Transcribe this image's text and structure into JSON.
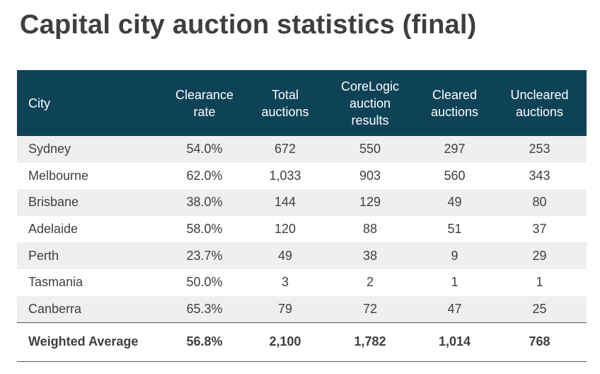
{
  "title": "Capital city auction statistics (final)",
  "table": {
    "headers": [
      "City",
      "Clearance rate",
      "Total auctions",
      "CoreLogic auction results",
      "Cleared auctions",
      "Uncleared auctions"
    ],
    "header_lines": [
      [
        "City"
      ],
      [
        "Clearance",
        "rate"
      ],
      [
        "Total",
        "auctions"
      ],
      [
        "CoreLogic",
        "auction",
        "results"
      ],
      [
        "Cleared",
        "auctions"
      ],
      [
        "Uncleared",
        "auctions"
      ]
    ],
    "rows": [
      [
        "Sydney",
        "54.0%",
        "672",
        "550",
        "297",
        "253"
      ],
      [
        "Melbourne",
        "62.0%",
        "1,033",
        "903",
        "560",
        "343"
      ],
      [
        "Brisbane",
        "38.0%",
        "144",
        "129",
        "49",
        "80"
      ],
      [
        "Adelaide",
        "58.0%",
        "120",
        "88",
        "51",
        "37"
      ],
      [
        "Perth",
        "23.7%",
        "49",
        "38",
        "9",
        "29"
      ],
      [
        "Tasmania",
        "50.0%",
        "3",
        "2",
        "1",
        "1"
      ],
      [
        "Canberra",
        "65.3%",
        "79",
        "72",
        "47",
        "25"
      ]
    ],
    "total": [
      "Weighted Average",
      "56.8%",
      "2,100",
      "1,782",
      "1,014",
      "768"
    ]
  },
  "colors": {
    "header_bg": "#0d4257",
    "header_text": "#ffffff",
    "band": "#efefef",
    "text": "#3f3f3f"
  }
}
